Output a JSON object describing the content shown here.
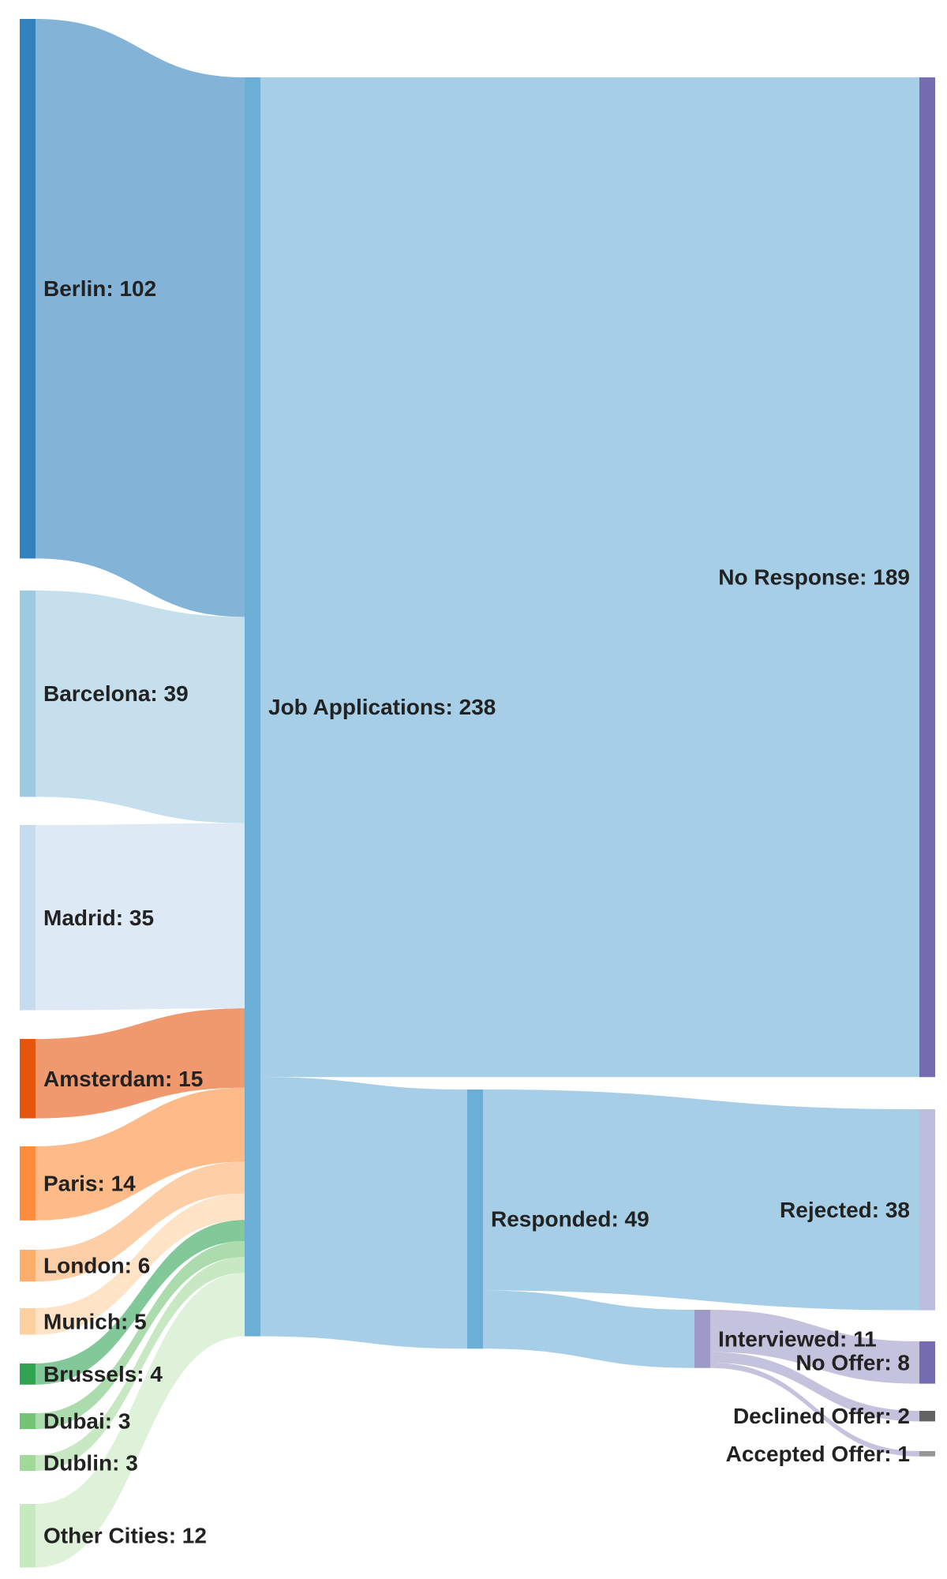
{
  "chart_data": {
    "type": "sankey",
    "nodes": [
      {
        "id": "berlin",
        "label": "Berlin: 102",
        "value": 102,
        "color": "#3182bd"
      },
      {
        "id": "barcelona",
        "label": "Barcelona: 39",
        "value": 39,
        "color": "#9ecae1"
      },
      {
        "id": "madrid",
        "label": "Madrid: 35",
        "value": 35,
        "color": "#c6dbef"
      },
      {
        "id": "amsterdam",
        "label": "Amsterdam: 15",
        "value": 15,
        "color": "#e6550d"
      },
      {
        "id": "paris",
        "label": "Paris: 14",
        "value": 14,
        "color": "#fd8d3c"
      },
      {
        "id": "london",
        "label": "London: 6",
        "value": 6,
        "color": "#fdae6b"
      },
      {
        "id": "munich",
        "label": "Munich: 5",
        "value": 5,
        "color": "#fdd0a2"
      },
      {
        "id": "brussels",
        "label": "Brussels: 4",
        "value": 4,
        "color": "#31a354"
      },
      {
        "id": "dubai",
        "label": "Dubai: 3",
        "value": 3,
        "color": "#74c476"
      },
      {
        "id": "dublin",
        "label": "Dublin: 3",
        "value": 3,
        "color": "#a1d99b"
      },
      {
        "id": "other",
        "label": "Other Cities: 12",
        "value": 12,
        "color": "#c7e9c0"
      },
      {
        "id": "applications",
        "label": "Job Applications: 238",
        "value": 238,
        "color": "#6baed6"
      },
      {
        "id": "noresponse",
        "label": "No Response: 189",
        "value": 189,
        "color": "#756bb1"
      },
      {
        "id": "responded",
        "label": "Responded: 49",
        "value": 49,
        "color": "#6baed6"
      },
      {
        "id": "rejected",
        "label": "Rejected: 38",
        "value": 38,
        "color": "#bcbddc"
      },
      {
        "id": "interviewed",
        "label": "Interviewed: 11",
        "value": 11,
        "color": "#9e9ac8"
      },
      {
        "id": "nooffer",
        "label": "No Offer: 8",
        "value": 8,
        "color": "#756bb1"
      },
      {
        "id": "declined",
        "label": "Declined Offer: 2",
        "value": 2,
        "color": "#636363"
      },
      {
        "id": "accepted",
        "label": "Accepted Offer: 1",
        "value": 1,
        "color": "#969696"
      }
    ],
    "links": [
      {
        "source": "berlin",
        "target": "applications",
        "value": 102
      },
      {
        "source": "barcelona",
        "target": "applications",
        "value": 39
      },
      {
        "source": "madrid",
        "target": "applications",
        "value": 35
      },
      {
        "source": "amsterdam",
        "target": "applications",
        "value": 15
      },
      {
        "source": "paris",
        "target": "applications",
        "value": 14
      },
      {
        "source": "london",
        "target": "applications",
        "value": 6
      },
      {
        "source": "munich",
        "target": "applications",
        "value": 5
      },
      {
        "source": "brussels",
        "target": "applications",
        "value": 4
      },
      {
        "source": "dubai",
        "target": "applications",
        "value": 3
      },
      {
        "source": "dublin",
        "target": "applications",
        "value": 3
      },
      {
        "source": "other",
        "target": "applications",
        "value": 12
      },
      {
        "source": "applications",
        "target": "noresponse",
        "value": 189
      },
      {
        "source": "applications",
        "target": "responded",
        "value": 49
      },
      {
        "source": "responded",
        "target": "rejected",
        "value": 38
      },
      {
        "source": "responded",
        "target": "interviewed",
        "value": 11
      },
      {
        "source": "interviewed",
        "target": "nooffer",
        "value": 8
      },
      {
        "source": "interviewed",
        "target": "declined",
        "value": 2
      },
      {
        "source": "interviewed",
        "target": "accepted",
        "value": 1
      }
    ]
  }
}
